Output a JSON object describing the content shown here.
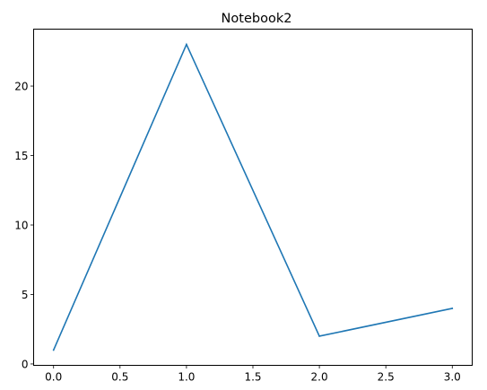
{
  "chart_data": {
    "type": "line",
    "title": "Notebook2",
    "xlabel": "",
    "ylabel": "",
    "x": [
      0,
      1,
      2,
      3
    ],
    "series": [
      {
        "values": [
          1,
          23,
          2,
          4
        ],
        "color": "#1f77b4"
      }
    ],
    "xlim": [
      -0.15,
      3.15
    ],
    "ylim": [
      -0.1,
      24.1
    ],
    "xticks": [
      0.0,
      0.5,
      1.0,
      1.5,
      2.0,
      2.5,
      3.0
    ],
    "xtick_labels": [
      "0.0",
      "0.5",
      "1.0",
      "1.5",
      "2.0",
      "2.5",
      "3.0"
    ],
    "yticks": [
      0,
      5,
      10,
      15,
      20
    ],
    "ytick_labels": [
      "0",
      "5",
      "10",
      "15",
      "20"
    ],
    "grid": false,
    "legend": "none"
  }
}
